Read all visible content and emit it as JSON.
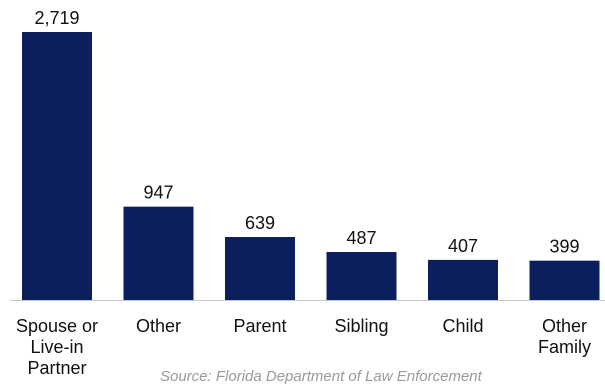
{
  "chart_data": {
    "type": "bar",
    "categories": [
      [
        "Spouse or",
        "Live-in",
        "Partner"
      ],
      [
        "Other"
      ],
      [
        "Parent"
      ],
      [
        "Sibling"
      ],
      [
        "Child"
      ],
      [
        "Other",
        "Family"
      ]
    ],
    "values": [
      2719,
      947,
      639,
      487,
      407,
      399
    ],
    "value_labels": [
      "2,719",
      "947",
      "639",
      "487",
      "407",
      "399"
    ],
    "title": "",
    "xlabel": "",
    "ylabel": "",
    "ylim": [
      0,
      2719
    ],
    "grid": false,
    "bar_color": "#0b1f5c",
    "axis_color": "#c8c8c8"
  },
  "source": "Source: Florida Department of Law Enforcement"
}
